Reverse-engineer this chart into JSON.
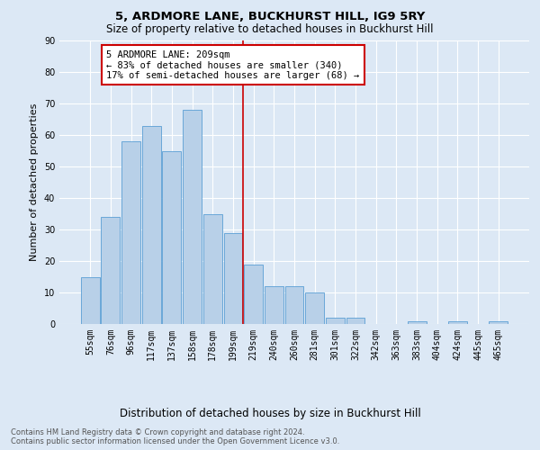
{
  "title": "5, ARDMORE LANE, BUCKHURST HILL, IG9 5RY",
  "subtitle": "Size of property relative to detached houses in Buckhurst Hill",
  "xlabel": "Distribution of detached houses by size in Buckhurst Hill",
  "ylabel": "Number of detached properties",
  "bar_labels": [
    "55sqm",
    "76sqm",
    "96sqm",
    "117sqm",
    "137sqm",
    "158sqm",
    "178sqm",
    "199sqm",
    "219sqm",
    "240sqm",
    "260sqm",
    "281sqm",
    "301sqm",
    "322sqm",
    "342sqm",
    "363sqm",
    "383sqm",
    "404sqm",
    "424sqm",
    "445sqm",
    "465sqm"
  ],
  "bar_values": [
    15,
    34,
    58,
    63,
    55,
    68,
    35,
    29,
    19,
    12,
    12,
    10,
    2,
    2,
    0,
    0,
    1,
    0,
    1,
    0,
    1
  ],
  "bar_color": "#b8d0e8",
  "bar_edgecolor": "#5a9fd4",
  "annotation_text": "5 ARDMORE LANE: 209sqm\n← 83% of detached houses are smaller (340)\n17% of semi-detached houses are larger (68) →",
  "annotation_box_color": "#ffffff",
  "annotation_box_edgecolor": "#cc0000",
  "vline_color": "#cc0000",
  "ylim": [
    0,
    90
  ],
  "yticks": [
    0,
    10,
    20,
    30,
    40,
    50,
    60,
    70,
    80,
    90
  ],
  "background_color": "#dce8f5",
  "grid_color": "#ffffff",
  "footnote": "Contains HM Land Registry data © Crown copyright and database right 2024.\nContains public sector information licensed under the Open Government Licence v3.0.",
  "title_fontsize": 9.5,
  "subtitle_fontsize": 8.5,
  "xlabel_fontsize": 8.5,
  "ylabel_fontsize": 8,
  "tick_fontsize": 7,
  "annotation_fontsize": 7.5,
  "footnote_fontsize": 6
}
